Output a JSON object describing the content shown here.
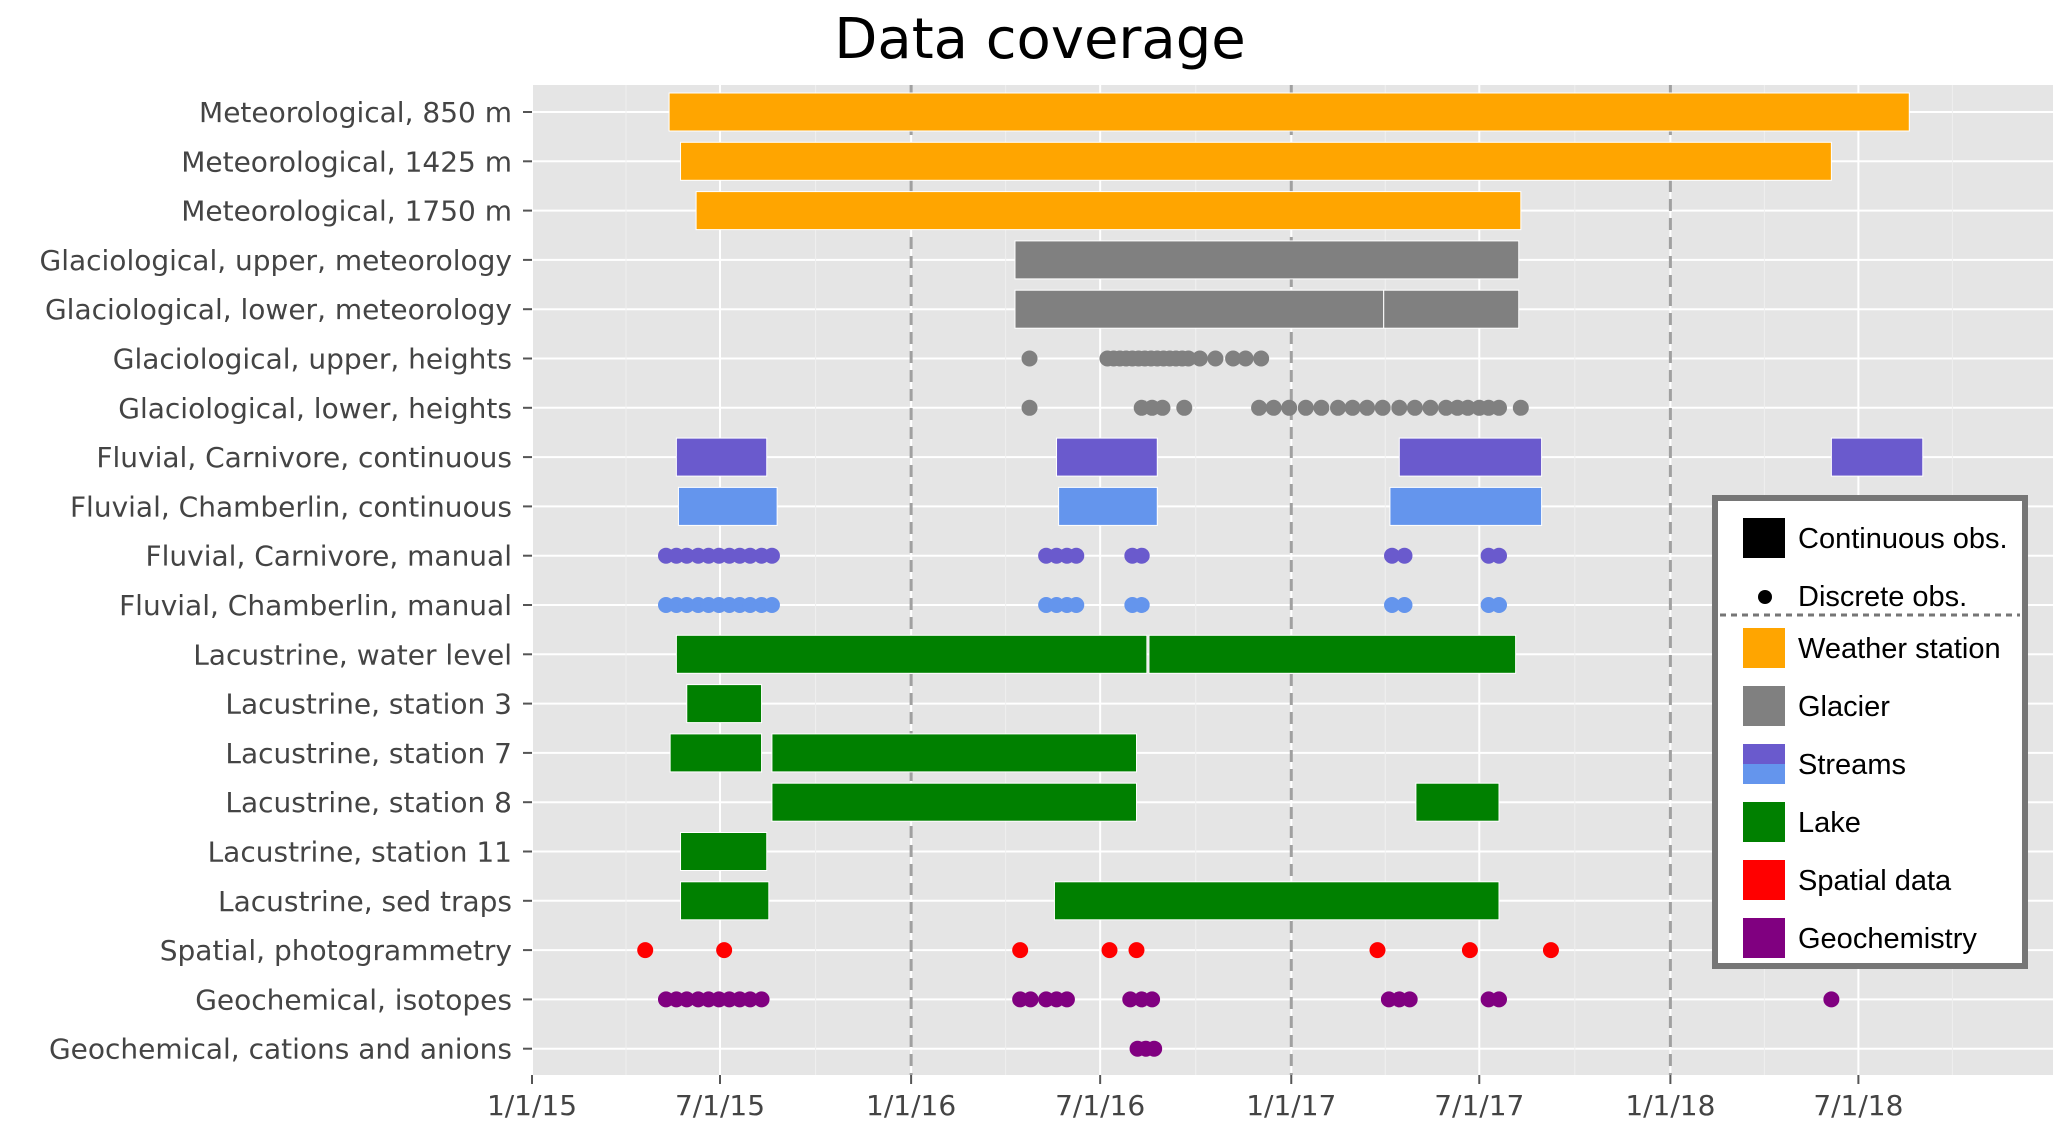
{
  "chart_data": {
    "type": "timeline",
    "title": "Data coverage",
    "xlabel": "",
    "ylabel": "",
    "xlim": [
      "2015-01-01",
      "2018-10-01"
    ],
    "grid": true,
    "reference_lines": [
      "2016-01-01",
      "2017-01-01",
      "2018-01-01"
    ],
    "x_ticks": [
      {
        "date": "2015-01-01",
        "label": "1/1/15"
      },
      {
        "date": "2015-07-01",
        "label": "7/1/15"
      },
      {
        "date": "2016-01-01",
        "label": "1/1/16"
      },
      {
        "date": "2016-07-01",
        "label": "7/1/16"
      },
      {
        "date": "2017-01-01",
        "label": "1/1/17"
      },
      {
        "date": "2017-07-01",
        "label": "7/1/17"
      },
      {
        "date": "2018-01-01",
        "label": "1/1/18"
      },
      {
        "date": "2018-07-01",
        "label": "7/1/18"
      }
    ],
    "categories": {
      "weather": {
        "name": "Weather station",
        "color": "#FFA500"
      },
      "glacier": {
        "name": "Glacier",
        "color": "#808080"
      },
      "streams": {
        "name": "Streams",
        "color": "#6A5ACD",
        "color2": "#6495ED"
      },
      "lake": {
        "name": "Lake",
        "color": "#008000"
      },
      "spatial": {
        "name": "Spatial data",
        "color": "#FF0000"
      },
      "geochem": {
        "name": "Geochemistry",
        "color": "#800080"
      }
    },
    "legend": {
      "position": "right",
      "continuous_label": "Continuous obs.",
      "discrete_label": "Discrete obs.",
      "entries": [
        "weather",
        "glacier",
        "streams",
        "lake",
        "spatial",
        "geochem"
      ]
    },
    "rows": [
      {
        "label": "Meteorological, 850 m",
        "color": "#FFA500",
        "continuous": [
          [
            "2015-05-13",
            "2018-08-19"
          ]
        ],
        "discrete": []
      },
      {
        "label": "Meteorological, 1425 m",
        "color": "#FFA500",
        "continuous": [
          [
            "2015-05-24",
            "2018-06-05"
          ]
        ],
        "discrete": []
      },
      {
        "label": "Meteorological, 1750 m",
        "color": "#FFA500",
        "continuous": [
          [
            "2015-06-08",
            "2017-08-10"
          ]
        ],
        "discrete": []
      },
      {
        "label": "Glaciological, upper, meteorology",
        "color": "#808080",
        "continuous": [
          [
            "2016-04-10",
            "2017-08-08"
          ]
        ],
        "discrete": []
      },
      {
        "label": "Glaciological, lower, meteorology",
        "color": "#808080",
        "continuous": [
          [
            "2016-04-10",
            "2017-03-31"
          ],
          [
            "2017-03-31",
            "2017-08-08"
          ]
        ],
        "discrete": []
      },
      {
        "label": "Glaciological, upper, heights",
        "color": "#808080",
        "continuous": [],
        "discrete": [
          "2016-04-24",
          "2016-07-08",
          "2016-07-14",
          "2016-07-20",
          "2016-07-26",
          "2016-08-01",
          "2016-08-07",
          "2016-08-13",
          "2016-08-19",
          "2016-08-25",
          "2016-08-31",
          "2016-09-06",
          "2016-09-12",
          "2016-09-18",
          "2016-09-24",
          "2016-10-05",
          "2016-10-20",
          "2016-11-06",
          "2016-11-18",
          "2016-12-03"
        ]
      },
      {
        "label": "Glaciological, lower, heights",
        "color": "#808080",
        "continuous": [],
        "discrete": [
          "2016-04-24",
          "2016-08-10",
          "2016-08-20",
          "2016-08-30",
          "2016-09-20",
          "2016-12-01",
          "2016-12-15",
          "2016-12-30",
          "2017-01-15",
          "2017-01-30",
          "2017-02-15",
          "2017-03-01",
          "2017-03-15",
          "2017-03-30",
          "2017-04-15",
          "2017-04-30",
          "2017-05-15",
          "2017-05-30",
          "2017-06-10",
          "2017-06-20",
          "2017-07-01",
          "2017-07-10",
          "2017-07-20",
          "2017-08-10"
        ]
      },
      {
        "label": "Fluvial, Carnivore, continuous",
        "color": "#6A5ACD",
        "continuous": [
          [
            "2015-05-20",
            "2015-08-15"
          ],
          [
            "2016-05-20",
            "2016-08-25"
          ],
          [
            "2017-04-15",
            "2017-08-30"
          ],
          [
            "2018-06-05",
            "2018-09-01"
          ]
        ],
        "discrete": []
      },
      {
        "label": "Fluvial, Chamberlin, continuous",
        "color": "#6495ED",
        "continuous": [
          [
            "2015-05-22",
            "2015-08-25"
          ],
          [
            "2016-05-22",
            "2016-08-25"
          ],
          [
            "2017-04-06",
            "2017-08-30"
          ]
        ],
        "discrete": []
      },
      {
        "label": "Fluvial, Carnivore, manual",
        "color": "#6A5ACD",
        "continuous": [],
        "discrete": [
          "2015-05-10",
          "2015-05-20",
          "2015-05-30",
          "2015-06-10",
          "2015-06-20",
          "2015-06-30",
          "2015-07-10",
          "2015-07-20",
          "2015-07-30",
          "2015-08-10",
          "2015-08-20",
          "2016-05-10",
          "2016-05-20",
          "2016-05-30",
          "2016-06-08",
          "2016-08-01",
          "2016-08-10",
          "2017-04-08",
          "2017-04-20",
          "2017-07-10",
          "2017-07-20"
        ]
      },
      {
        "label": "Fluvial, Chamberlin, manual",
        "color": "#6495ED",
        "continuous": [],
        "discrete": [
          "2015-05-10",
          "2015-05-20",
          "2015-05-30",
          "2015-06-10",
          "2015-06-20",
          "2015-06-30",
          "2015-07-10",
          "2015-07-20",
          "2015-07-30",
          "2015-08-10",
          "2015-08-20",
          "2016-05-10",
          "2016-05-20",
          "2016-05-30",
          "2016-06-08",
          "2016-08-01",
          "2016-08-10",
          "2017-04-08",
          "2017-04-20",
          "2017-07-10",
          "2017-07-20"
        ]
      },
      {
        "label": "Lacustrine, water level",
        "color": "#008000",
        "continuous": [
          [
            "2015-05-20",
            "2016-08-15"
          ],
          [
            "2016-08-17",
            "2017-08-05"
          ]
        ],
        "discrete": []
      },
      {
        "label": "Lacustrine, station 3",
        "color": "#008000",
        "continuous": [
          [
            "2015-05-30",
            "2015-08-10"
          ]
        ],
        "discrete": []
      },
      {
        "label": "Lacustrine, station 7",
        "color": "#008000",
        "continuous": [
          [
            "2015-05-14",
            "2015-08-10"
          ],
          [
            "2015-08-20",
            "2016-08-05"
          ]
        ],
        "discrete": []
      },
      {
        "label": "Lacustrine, station 8",
        "color": "#008000",
        "continuous": [
          [
            "2015-08-20",
            "2016-08-05"
          ],
          [
            "2017-05-01",
            "2017-07-20"
          ]
        ],
        "discrete": []
      },
      {
        "label": "Lacustrine, station 11",
        "color": "#008000",
        "continuous": [
          [
            "2015-05-24",
            "2015-08-15"
          ]
        ],
        "discrete": []
      },
      {
        "label": "Lacustrine, sed traps",
        "color": "#008000",
        "continuous": [
          [
            "2015-05-24",
            "2015-08-17"
          ],
          [
            "2016-05-18",
            "2017-07-20"
          ]
        ],
        "discrete": []
      },
      {
        "label": "Spatial, photogrammetry",
        "color": "#FF0000",
        "continuous": [],
        "discrete": [
          "2015-04-20",
          "2015-07-05",
          "2016-04-15",
          "2016-07-10",
          "2016-08-05",
          "2017-03-25",
          "2017-06-22",
          "2017-09-08"
        ]
      },
      {
        "label": "Geochemical, isotopes",
        "color": "#800080",
        "continuous": [],
        "discrete": [
          "2015-05-10",
          "2015-05-20",
          "2015-05-30",
          "2015-06-10",
          "2015-06-20",
          "2015-06-30",
          "2015-07-10",
          "2015-07-20",
          "2015-07-30",
          "2015-08-10",
          "2016-04-15",
          "2016-04-25",
          "2016-05-10",
          "2016-05-20",
          "2016-05-30",
          "2016-07-30",
          "2016-08-10",
          "2016-08-20",
          "2017-04-05",
          "2017-04-15",
          "2017-04-25",
          "2017-07-10",
          "2017-07-20",
          "2018-06-05"
        ]
      },
      {
        "label": "Geochemical, cations and anions",
        "color": "#800080",
        "continuous": [],
        "discrete": [
          "2016-08-06",
          "2016-08-14",
          "2016-08-22"
        ]
      }
    ]
  }
}
